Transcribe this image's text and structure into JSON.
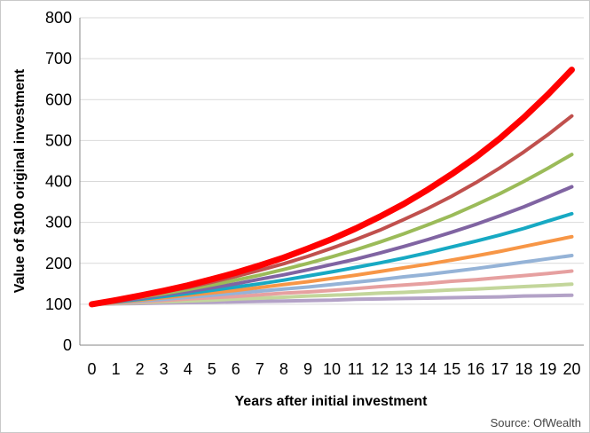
{
  "chart_data": {
    "type": "line",
    "xlabel": "Years after initial investment",
    "ylabel": "Value of $100 original investment",
    "source": "Source: OfWealth",
    "x": [
      0,
      1,
      2,
      3,
      4,
      5,
      6,
      7,
      8,
      9,
      10,
      11,
      12,
      13,
      14,
      15,
      16,
      17,
      18,
      19,
      20
    ],
    "ylim": [
      0,
      800
    ],
    "yticks": [
      0,
      100,
      200,
      300,
      400,
      500,
      600,
      700,
      800
    ],
    "grid": true,
    "legend": "none",
    "series": [
      {
        "color": "#b3a2c7",
        "values": [
          100,
          101,
          102,
          103,
          104,
          105,
          106,
          107,
          108,
          109,
          110,
          112,
          113,
          114,
          115,
          116,
          117,
          118,
          120,
          121,
          122
        ]
      },
      {
        "color": "#c3d69b",
        "values": [
          100,
          102,
          104,
          106,
          108,
          110,
          113,
          115,
          117,
          120,
          122,
          124,
          127,
          129,
          132,
          135,
          137,
          140,
          143,
          146,
          149
        ]
      },
      {
        "color": "#e6a0a0",
        "values": [
          100,
          103,
          106,
          109,
          113,
          116,
          119,
          123,
          127,
          130,
          134,
          138,
          143,
          147,
          151,
          156,
          160,
          165,
          170,
          175,
          181
        ]
      },
      {
        "color": "#95b3d7",
        "values": [
          100,
          104,
          108,
          112,
          117,
          122,
          127,
          132,
          137,
          142,
          148,
          154,
          160,
          167,
          173,
          180,
          187,
          195,
          203,
          211,
          219
        ]
      },
      {
        "color": "#f79646",
        "values": [
          100,
          105,
          110,
          116,
          122,
          128,
          134,
          141,
          148,
          155,
          163,
          171,
          180,
          189,
          198,
          208,
          218,
          229,
          241,
          253,
          265
        ]
      },
      {
        "color": "#17a9c3",
        "values": [
          100,
          106,
          112,
          119,
          126,
          134,
          142,
          150,
          159,
          169,
          179,
          190,
          201,
          213,
          226,
          240,
          254,
          269,
          285,
          303,
          321
        ]
      },
      {
        "color": "#8064a2",
        "values": [
          100,
          107,
          114,
          123,
          131,
          140,
          150,
          161,
          172,
          184,
          197,
          210,
          225,
          241,
          258,
          276,
          295,
          316,
          338,
          362,
          387
        ]
      },
      {
        "color": "#9bbb59",
        "values": [
          100,
          108,
          117,
          126,
          136,
          147,
          159,
          171,
          185,
          200,
          216,
          233,
          252,
          272,
          294,
          317,
          343,
          370,
          400,
          432,
          466
        ]
      },
      {
        "color": "#c0504d",
        "values": [
          100,
          109,
          119,
          130,
          141,
          154,
          168,
          183,
          199,
          217,
          237,
          258,
          281,
          307,
          334,
          364,
          397,
          433,
          472,
          514,
          560
        ]
      },
      {
        "color": "#ff0000",
        "values": [
          100,
          110,
          121,
          133,
          146,
          161,
          177,
          195,
          214,
          236,
          259,
          285,
          314,
          345,
          380,
          418,
          459,
          505,
          556,
          612,
          673
        ]
      }
    ]
  }
}
